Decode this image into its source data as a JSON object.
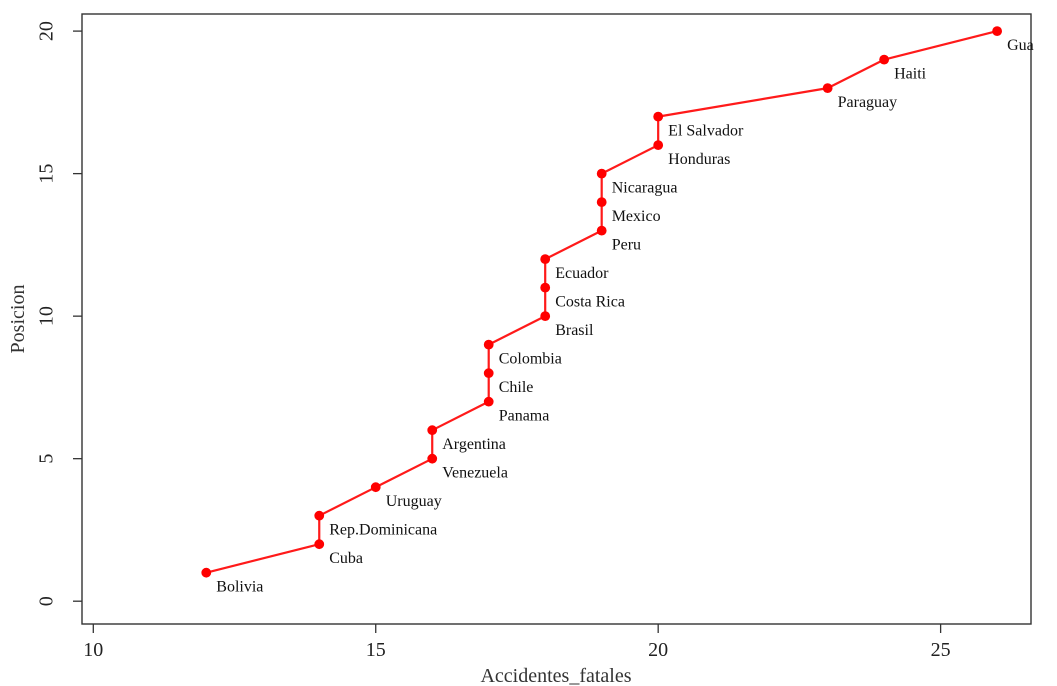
{
  "chart_data": {
    "type": "line",
    "title": "",
    "xlabel": "Accidentes_fatales",
    "ylabel": "Posicion",
    "xlim": [
      9.8,
      26.6
    ],
    "ylim": [
      -0.8,
      20.6
    ],
    "x_ticks": [
      10,
      15,
      20,
      25
    ],
    "y_ticks": [
      0,
      5,
      10,
      15,
      20
    ],
    "x_tick_labels": [
      "10",
      "15",
      "20",
      "25"
    ],
    "y_tick_labels": [
      "0",
      "5",
      "10",
      "15",
      "20"
    ],
    "grid": false,
    "legend": "none",
    "series": [
      {
        "labels": [
          "Bolivia",
          "Cuba",
          "Rep.Dominicana",
          "Uruguay",
          "Venezuela",
          "Argentina",
          "Panama",
          "Chile",
          "Colombia",
          "Brasil",
          "Costa Rica",
          "Ecuador",
          "Peru",
          "Mexico",
          "Nicaragua",
          "Honduras",
          "El Salvador",
          "Paraguay",
          "Haiti",
          "Gua"
        ],
        "x": [
          12,
          14,
          14,
          15,
          16,
          16,
          17,
          17,
          17,
          18,
          18,
          18,
          19,
          19,
          19,
          20,
          20,
          23,
          24,
          26
        ],
        "y": [
          1,
          2,
          3,
          4,
          5,
          6,
          7,
          8,
          9,
          10,
          11,
          12,
          13,
          14,
          15,
          16,
          17,
          18,
          19,
          20
        ]
      }
    ]
  },
  "colors": {
    "line": "#ff1a1a",
    "point": "#ff0000",
    "axis": "#333333",
    "text": "#111111"
  }
}
